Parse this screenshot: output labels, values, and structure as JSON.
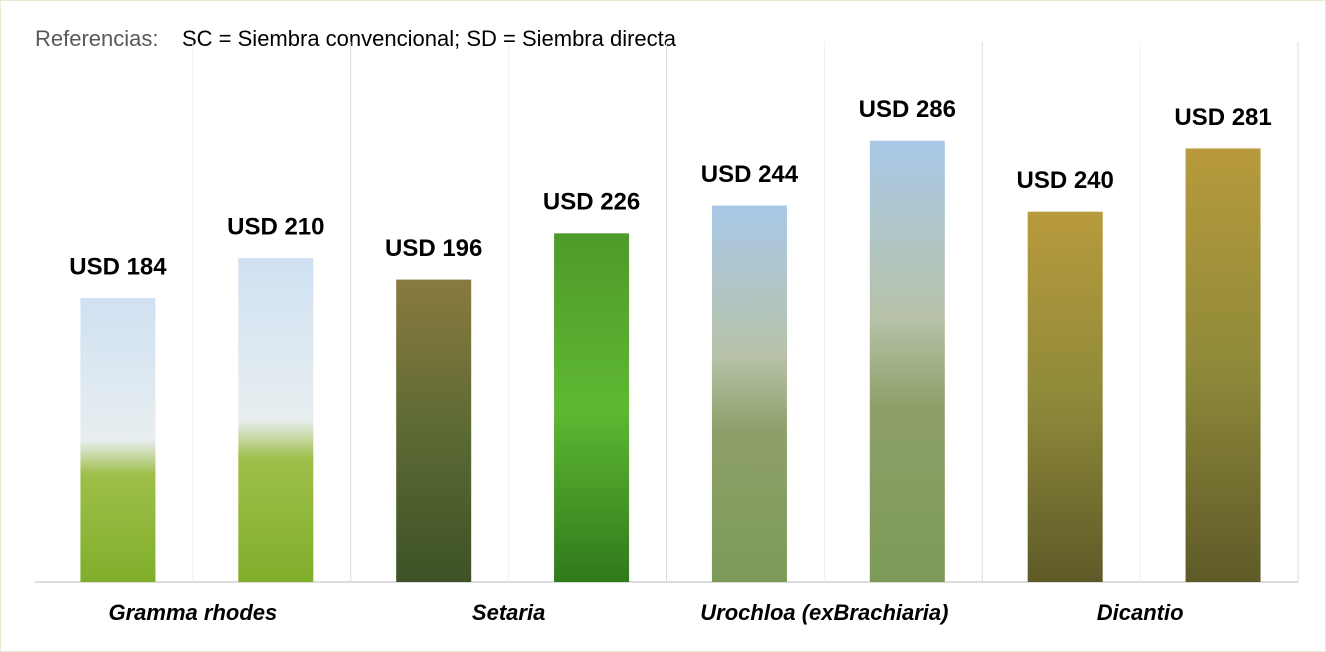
{
  "chart_data": {
    "type": "bar",
    "note_label": "Referencias:",
    "note": "SC = Siembra convencional; SD = Siembra directa",
    "categories": [
      "Gramma rhodes",
      "Setaria",
      "Urochloa (exBrachiaria)",
      "Dicantio"
    ],
    "series": [
      {
        "values": [
          184,
          196,
          244,
          240
        ],
        "value_labels": [
          "USD 184",
          "USD 196",
          "USD 244",
          "USD 240"
        ]
      },
      {
        "values": [
          210,
          226,
          286,
          281
        ],
        "value_labels": [
          "USD 210",
          "USD 226",
          "USD 286",
          "USD 281"
        ]
      }
    ],
    "ylim": [
      0,
      350
    ]
  }
}
